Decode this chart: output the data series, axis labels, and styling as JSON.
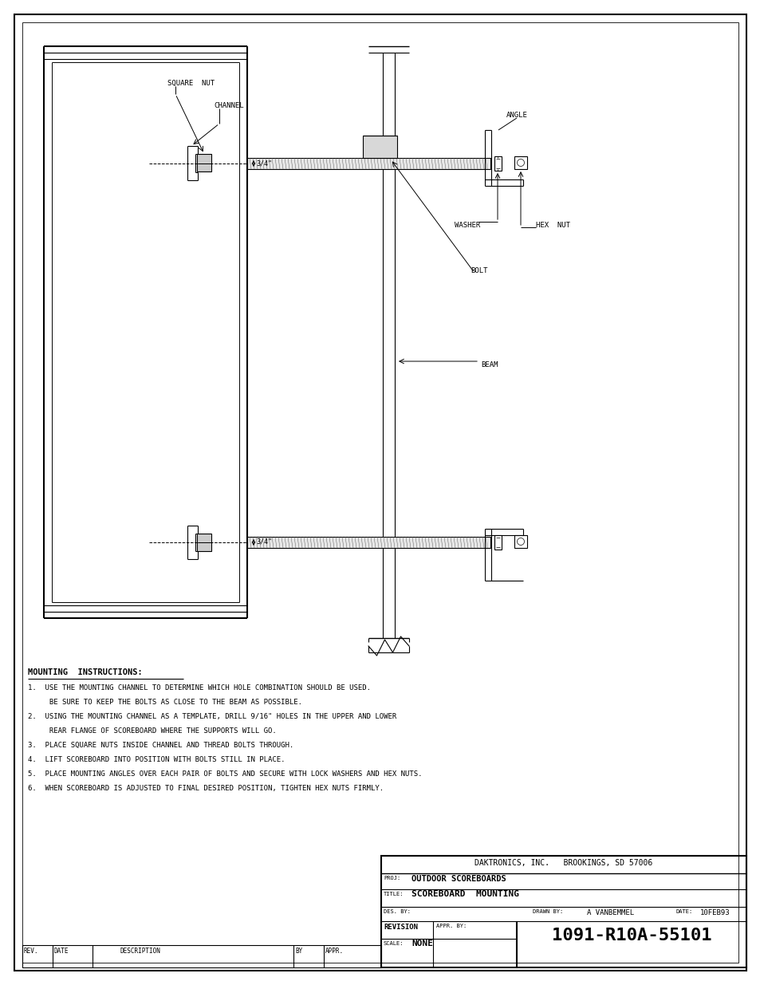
{
  "bg_color": "#ffffff",
  "fig_width": 9.54,
  "fig_height": 12.35,
  "title_block": {
    "company": "DAKTRONICS, INC.   BROOKINGS, SD 57006",
    "proj_label": "PROJ:",
    "proj": "OUTDOOR SCOREBOARDS",
    "title_label": "TITLE:",
    "title": "SCOREBOARD  MOUNTING",
    "des_by_label": "DES. BY:",
    "drawn_by_label": "DRAWN BY:",
    "drawn_by": "A VANBEMMEL",
    "date_label": "DATE:",
    "date": "10FEB93",
    "revision_label": "REVISION",
    "appr_label": "APPR. BY:",
    "scale_label": "SCALE:",
    "scale": "NONE",
    "drawing_num": "1091-R10A-55101"
  },
  "revision_block": {
    "rev_label": "REV.",
    "date_label": "DATE",
    "desc_label": "DESCRIPTION",
    "by_label": "BY",
    "appr_label": "APPR."
  },
  "instructions_title": "MOUNTING  INSTRUCTIONS:",
  "instructions": [
    "1.  USE THE MOUNTING CHANNEL TO DETERMINE WHICH HOLE COMBINATION SHOULD BE USED.",
    "     BE SURE TO KEEP THE BOLTS AS CLOSE TO THE BEAM AS POSSIBLE.",
    "2.  USING THE MOUNTING CHANNEL AS A TEMPLATE, DRILL 9/16\" HOLES IN THE UPPER AND LOWER",
    "     REAR FLANGE OF SCOREBOARD WHERE THE SUPPORTS WILL GO.",
    "3.  PLACE SQUARE NUTS INSIDE CHANNEL AND THREAD BOLTS THROUGH.",
    "4.  LIFT SCOREBOARD INTO POSITION WITH BOLTS STILL IN PLACE.",
    "5.  PLACE MOUNTING ANGLES OVER EACH PAIR OF BOLTS AND SECURE WITH LOCK WASHERS AND HEX NUTS.",
    "6.  WHEN SCOREBOARD IS ADJUSTED TO FINAL DESIRED POSITION, TIGHTEN HEX NUTS FIRMLY."
  ],
  "labels": {
    "square_nut": "SQUARE  NUT",
    "channel": "CHANNEL",
    "angle": "ANGLE",
    "washer": "WASHER",
    "hex_nut": "HEX  NUT",
    "bolt": "BOLT",
    "beam": "BEAM"
  }
}
